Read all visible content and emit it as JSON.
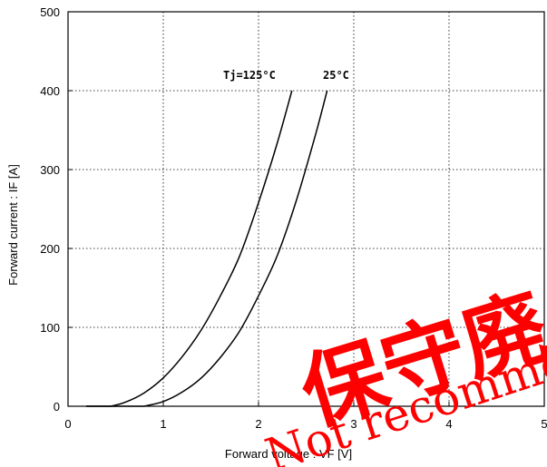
{
  "chart_data": {
    "type": "line",
    "xlabel": "Forward voltage : VF [V]",
    "ylabel": "Forward current : IF [A]",
    "xlim": [
      0,
      5
    ],
    "ylim": [
      0,
      500
    ],
    "x_ticks": [
      "0",
      "1",
      "2",
      "3",
      "4",
      "5"
    ],
    "y_ticks": [
      "0",
      "100",
      "200",
      "300",
      "400",
      "500"
    ],
    "grid": true,
    "series": [
      {
        "name": "Tj=125°C",
        "x": [
          0.45,
          0.6,
          0.8,
          1.0,
          1.2,
          1.4,
          1.6,
          1.8,
          2.0,
          2.2,
          2.35
        ],
        "y": [
          0,
          5,
          17,
          36,
          63,
          97,
          140,
          190,
          258,
          335,
          400
        ]
      },
      {
        "name": "25°C",
        "x": [
          0.8,
          1.0,
          1.2,
          1.4,
          1.6,
          1.8,
          2.0,
          2.2,
          2.4,
          2.6,
          2.72
        ],
        "y": [
          0,
          6,
          18,
          36,
          62,
          95,
          140,
          192,
          262,
          345,
          400
        ]
      }
    ]
  },
  "watermark": {
    "main": "保守廃止",
    "sub": "Not recommended"
  }
}
